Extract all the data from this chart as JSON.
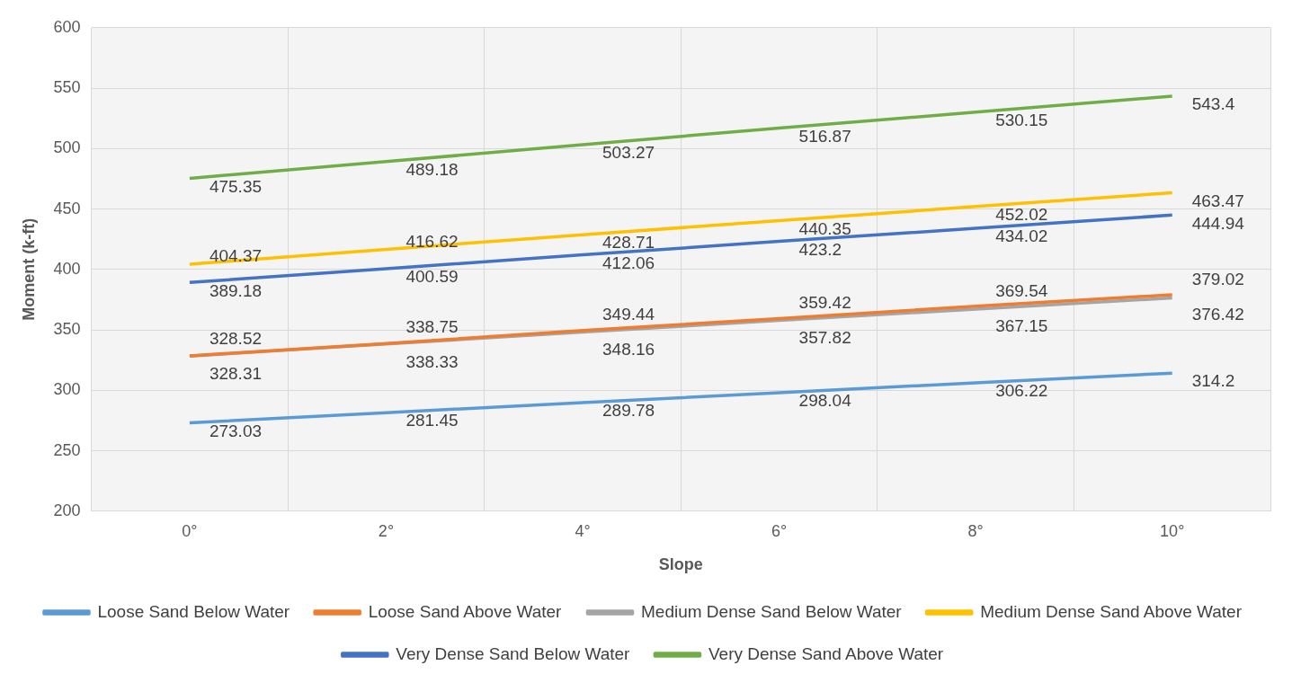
{
  "chart_data": {
    "type": "line",
    "xlabel": "Slope",
    "ylabel": "Moment (k-ft)",
    "categories": [
      "0°",
      "2°",
      "4°",
      "6°",
      "8°",
      "10°"
    ],
    "ylim": [
      200,
      600
    ],
    "yticks": [
      200,
      250,
      300,
      350,
      400,
      450,
      500,
      550,
      600
    ],
    "grid": true,
    "legend": "bottom",
    "data_labels": true,
    "marker": "none",
    "line_style": "solid",
    "series": [
      {
        "name": "Loose Sand Below Water",
        "color": "#5b9bd5",
        "values": [
          273.03,
          281.45,
          289.78,
          298.04,
          306.22,
          314.2
        ]
      },
      {
        "name": "Loose Sand Above Water",
        "color": "#ed7d31",
        "values": [
          328.52,
          338.75,
          349.44,
          359.42,
          369.54,
          379.02
        ]
      },
      {
        "name": "Medium Dense Sand Below Water",
        "color": "#a5a5a5",
        "values": [
          328.31,
          338.33,
          348.16,
          357.82,
          367.15,
          376.42
        ]
      },
      {
        "name": "Medium Dense Sand Above Water",
        "color": "#ffc000",
        "values": [
          404.37,
          416.62,
          428.71,
          440.35,
          452.02,
          463.47
        ]
      },
      {
        "name": "Very Dense Sand Below Water",
        "color": "#4472c4",
        "values": [
          389.18,
          400.59,
          412.06,
          423.2,
          434.02,
          444.94
        ]
      },
      {
        "name": "Very Dense Sand Above Water",
        "color": "#70ad47",
        "values": [
          475.35,
          489.18,
          503.27,
          516.87,
          530.15,
          543.4
        ]
      }
    ]
  }
}
